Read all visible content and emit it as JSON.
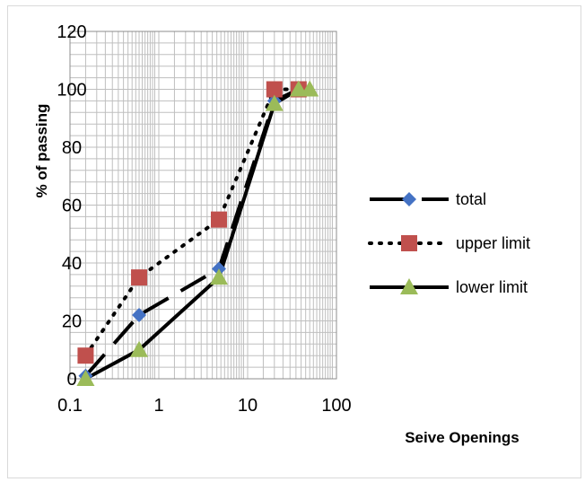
{
  "chart_data": {
    "type": "line",
    "title": "",
    "xlabel": "Seive Openings",
    "ylabel": "% of passing",
    "x_scale": "log",
    "xlim": [
      0.1,
      100
    ],
    "ylim": [
      0,
      120
    ],
    "x_ticks": [
      "0.1",
      "1",
      "10",
      "100"
    ],
    "y_ticks": [
      "0",
      "20",
      "40",
      "60",
      "80",
      "100",
      "120"
    ],
    "grid": true,
    "legend_position": "right",
    "series": [
      {
        "name": "total",
        "color": "#4472c4",
        "marker": "diamond",
        "line": "long-dash",
        "x": [
          0.15,
          0.6,
          4.75,
          20,
          37.5
        ],
        "y": [
          1,
          22,
          38,
          96,
          100
        ]
      },
      {
        "name": "upper limit",
        "color": "#c0504d",
        "marker": "square",
        "line": "dotted",
        "x": [
          0.15,
          0.6,
          4.75,
          20,
          37.5
        ],
        "y": [
          8,
          35,
          55,
          100,
          100
        ]
      },
      {
        "name": "lower limit",
        "color": "#9bbb59",
        "marker": "triangle",
        "line": "solid",
        "x": [
          0.15,
          0.6,
          4.75,
          20,
          37.5,
          50
        ],
        "y": [
          0,
          10,
          35,
          95,
          100,
          100
        ]
      }
    ]
  }
}
